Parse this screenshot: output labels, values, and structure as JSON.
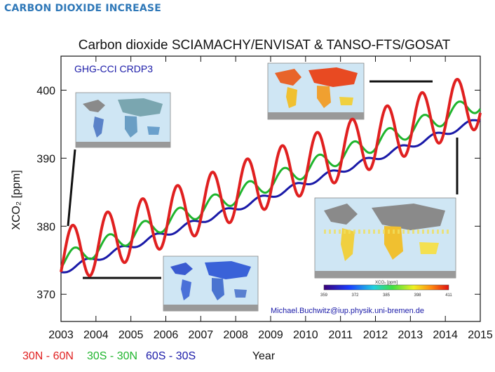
{
  "header": {
    "label": "CARBON DIOXIDE INCREASE"
  },
  "chart_data": {
    "type": "line",
    "title": "Carbon dioxide SCIAMACHY/ENVISAT & TANSO-FTS/GOSAT",
    "subtitle": "GHG-CCI CRDP3",
    "xlabel": "Year",
    "ylabel": "XCO₂ [ppm]",
    "xlim": [
      2003,
      2015
    ],
    "ylim": [
      366,
      405
    ],
    "x_ticks": [
      2003,
      2004,
      2005,
      2006,
      2007,
      2008,
      2009,
      2010,
      2011,
      2012,
      2013,
      2014,
      2015
    ],
    "y_ticks": [
      370,
      380,
      390,
      400
    ],
    "credit": "Michael.Buchwitz@iup.physik.uni-bremen.de",
    "legend_position": "bottom-left",
    "series": [
      {
        "name": "30N - 60N",
        "color": "#e02020",
        "trend_start": 375.3,
        "growth_per_year": 1.95,
        "seasonal_amplitude": 4.2,
        "peak_phase": 0.33
      },
      {
        "name": "30S - 30N",
        "color": "#1fb52d",
        "trend_start": 374.8,
        "growth_per_year": 1.95,
        "seasonal_amplitude": 1.3,
        "peak_phase": 0.38
      },
      {
        "name": "60S - 30S",
        "color": "#1a1aa8",
        "trend_start": 373.4,
        "growth_per_year": 1.85,
        "seasonal_amplitude": 0.45,
        "peak_phase": 0.7
      }
    ],
    "colorbar": {
      "label": "XCO₂ [ppm]",
      "tick_labels": [
        "359",
        "372",
        "385",
        "398",
        "411"
      ]
    }
  }
}
